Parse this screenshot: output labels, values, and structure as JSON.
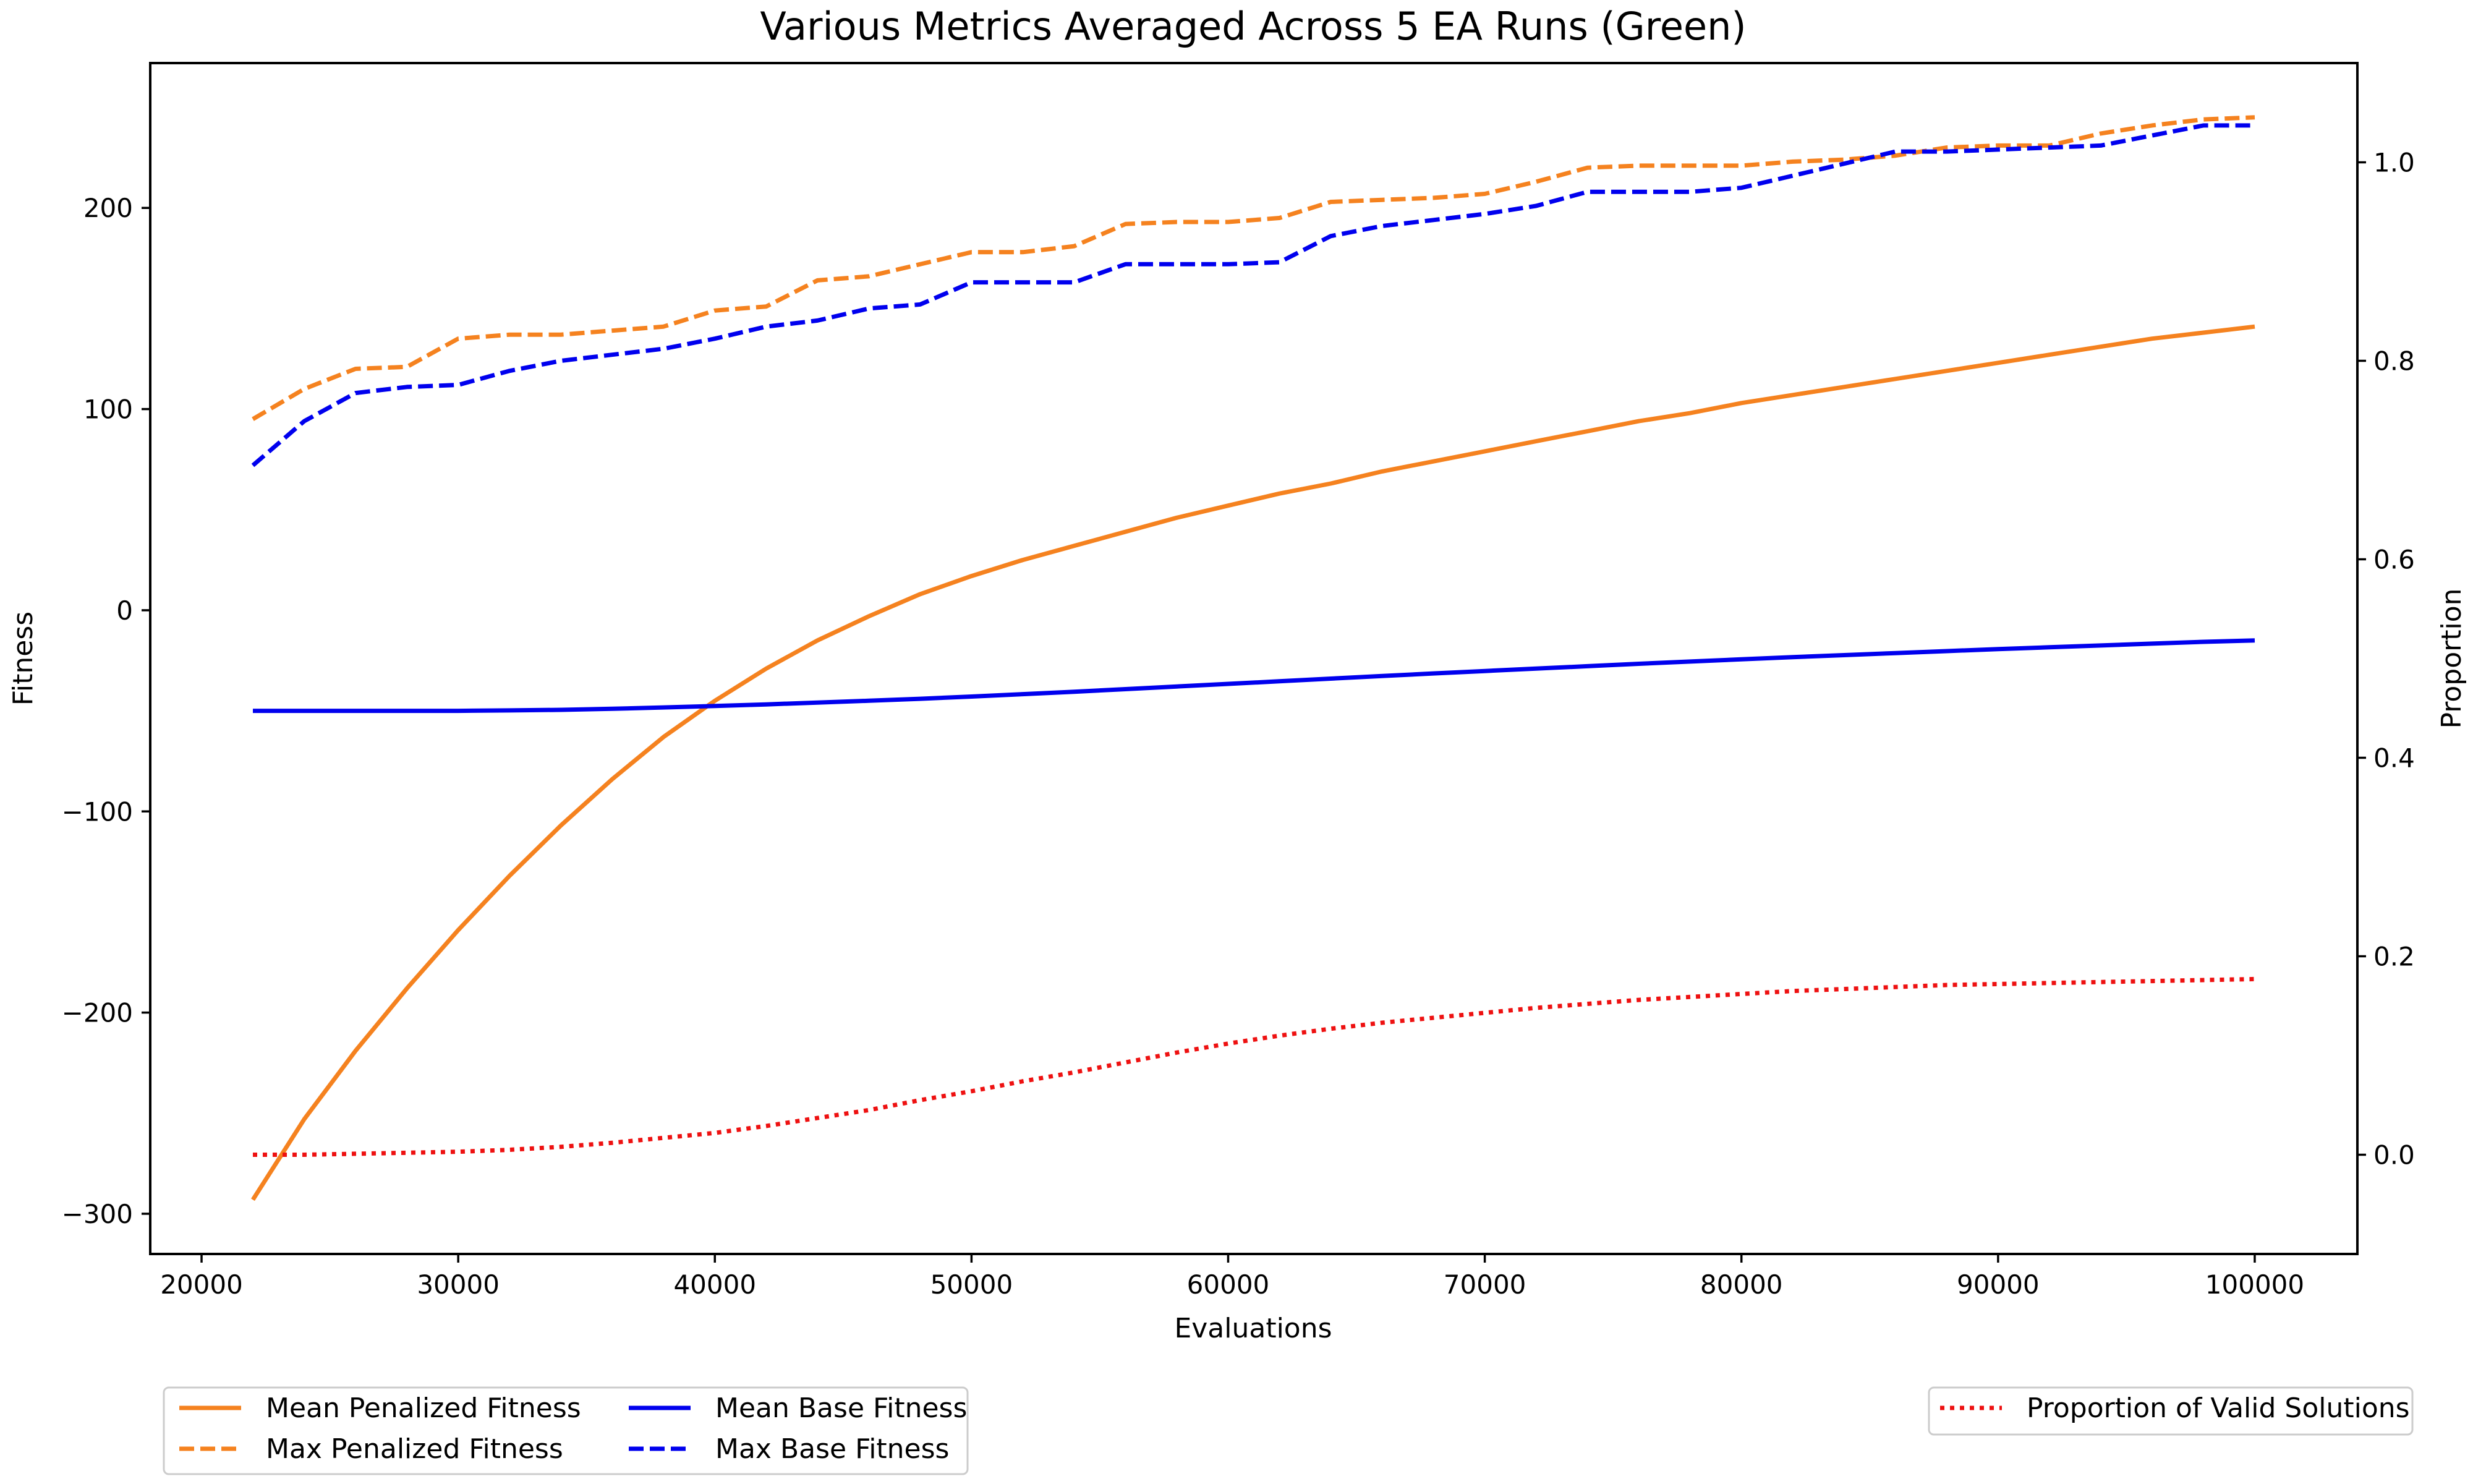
{
  "chart_data": {
    "type": "line",
    "title": "Various Metrics Averaged Across 5 EA Runs (Green)",
    "xlabel": "Evaluations",
    "ylabel": "Fitness",
    "ylabel_right": "Proportion",
    "xlim": [
      18000,
      104000
    ],
    "ylim": [
      -320,
      272
    ],
    "ylim_right": [
      -0.1,
      1.1
    ],
    "x_ticks": [
      20000,
      30000,
      40000,
      50000,
      60000,
      70000,
      80000,
      90000,
      100000
    ],
    "x_tick_labels": [
      "20000",
      "30000",
      "40000",
      "50000",
      "60000",
      "70000",
      "80000",
      "90000",
      "100000"
    ],
    "y_ticks": [
      -300,
      -200,
      -100,
      0,
      100,
      200
    ],
    "y_tick_labels": [
      "−300",
      "−200",
      "−100",
      "0",
      "100",
      "200"
    ],
    "y_ticks_right": [
      0.0,
      0.2,
      0.4,
      0.6,
      0.8,
      1.0
    ],
    "y_tick_labels_right": [
      "0.0",
      "0.2",
      "0.4",
      "0.6",
      "0.8",
      "1.0"
    ],
    "grid": false,
    "x": [
      22000,
      24000,
      26000,
      28000,
      30000,
      32000,
      34000,
      36000,
      38000,
      40000,
      42000,
      44000,
      46000,
      48000,
      50000,
      52000,
      54000,
      56000,
      58000,
      60000,
      62000,
      64000,
      66000,
      68000,
      70000,
      72000,
      74000,
      76000,
      78000,
      80000,
      82000,
      84000,
      86000,
      88000,
      90000,
      92000,
      94000,
      96000,
      98000,
      100000
    ],
    "series": [
      {
        "name": "Mean Penalized Fitness",
        "axis": "left",
        "color": "#f5821f",
        "dash": "solid",
        "values": [
          -293,
          -253,
          -219,
          -188,
          -159,
          -132,
          -107,
          -84,
          -63,
          -45,
          -29,
          -15,
          -3,
          8,
          17,
          25,
          32,
          39,
          46,
          52,
          58,
          63,
          69,
          74,
          79,
          84,
          89,
          94,
          98,
          103,
          107,
          111,
          115,
          119,
          123,
          127,
          131,
          135,
          138,
          141
        ]
      },
      {
        "name": "Max Penalized Fitness",
        "axis": "left",
        "color": "#f5821f",
        "dash": "dashed",
        "values": [
          95,
          110,
          120,
          121,
          135,
          137,
          137,
          139,
          141,
          149,
          151,
          164,
          166,
          172,
          178,
          178,
          181,
          192,
          193,
          193,
          195,
          203,
          204,
          205,
          207,
          213,
          220,
          221,
          221,
          221,
          223,
          224,
          226,
          230,
          231,
          231,
          237,
          241,
          244,
          245
        ]
      },
      {
        "name": "Mean Base Fitness",
        "axis": "left",
        "color": "#0000ee",
        "dash": "solid",
        "values": [
          -50,
          -50,
          -50,
          -50,
          -50,
          -49.8,
          -49.5,
          -49,
          -48.3,
          -47.6,
          -46.8,
          -45.9,
          -45,
          -44,
          -42.9,
          -41.7,
          -40.5,
          -39.2,
          -37.9,
          -36.6,
          -35.3,
          -34,
          -32.7,
          -31.4,
          -30.2,
          -29,
          -27.8,
          -26.6,
          -25.5,
          -24.4,
          -23.3,
          -22.3,
          -21.3,
          -20.3,
          -19.3,
          -18.4,
          -17.5,
          -16.6,
          -15.7,
          -15
        ]
      },
      {
        "name": "Max Base Fitness",
        "axis": "left",
        "color": "#0000ee",
        "dash": "dashed",
        "values": [
          72,
          94,
          108,
          111,
          112,
          119,
          124,
          127,
          130,
          135,
          141,
          144,
          150,
          152,
          163,
          163,
          163,
          172,
          172,
          172,
          173,
          186,
          191,
          194,
          197,
          201,
          208,
          208,
          208,
          210,
          216,
          222,
          228,
          228,
          229,
          230,
          231,
          236,
          241,
          241
        ]
      },
      {
        "name": "Proportion of Valid Solutions",
        "axis": "right",
        "color": "#ee1111",
        "dash": "dotted",
        "values": [
          0.0,
          0.0,
          0.001,
          0.002,
          0.003,
          0.005,
          0.008,
          0.012,
          0.017,
          0.022,
          0.029,
          0.037,
          0.045,
          0.055,
          0.064,
          0.074,
          0.083,
          0.093,
          0.103,
          0.112,
          0.12,
          0.127,
          0.133,
          0.138,
          0.143,
          0.148,
          0.152,
          0.156,
          0.159,
          0.162,
          0.165,
          0.167,
          0.169,
          0.171,
          0.172,
          0.173,
          0.174,
          0.175,
          0.176,
          0.177
        ]
      }
    ],
    "legend": [
      {
        "placement": "bottom-left",
        "entries": [
          "Mean Penalized Fitness",
          "Max Penalized Fitness",
          "Mean Base Fitness",
          "Max Base Fitness"
        ]
      },
      {
        "placement": "bottom-right",
        "entries": [
          "Proportion of Valid Solutions"
        ]
      }
    ]
  }
}
